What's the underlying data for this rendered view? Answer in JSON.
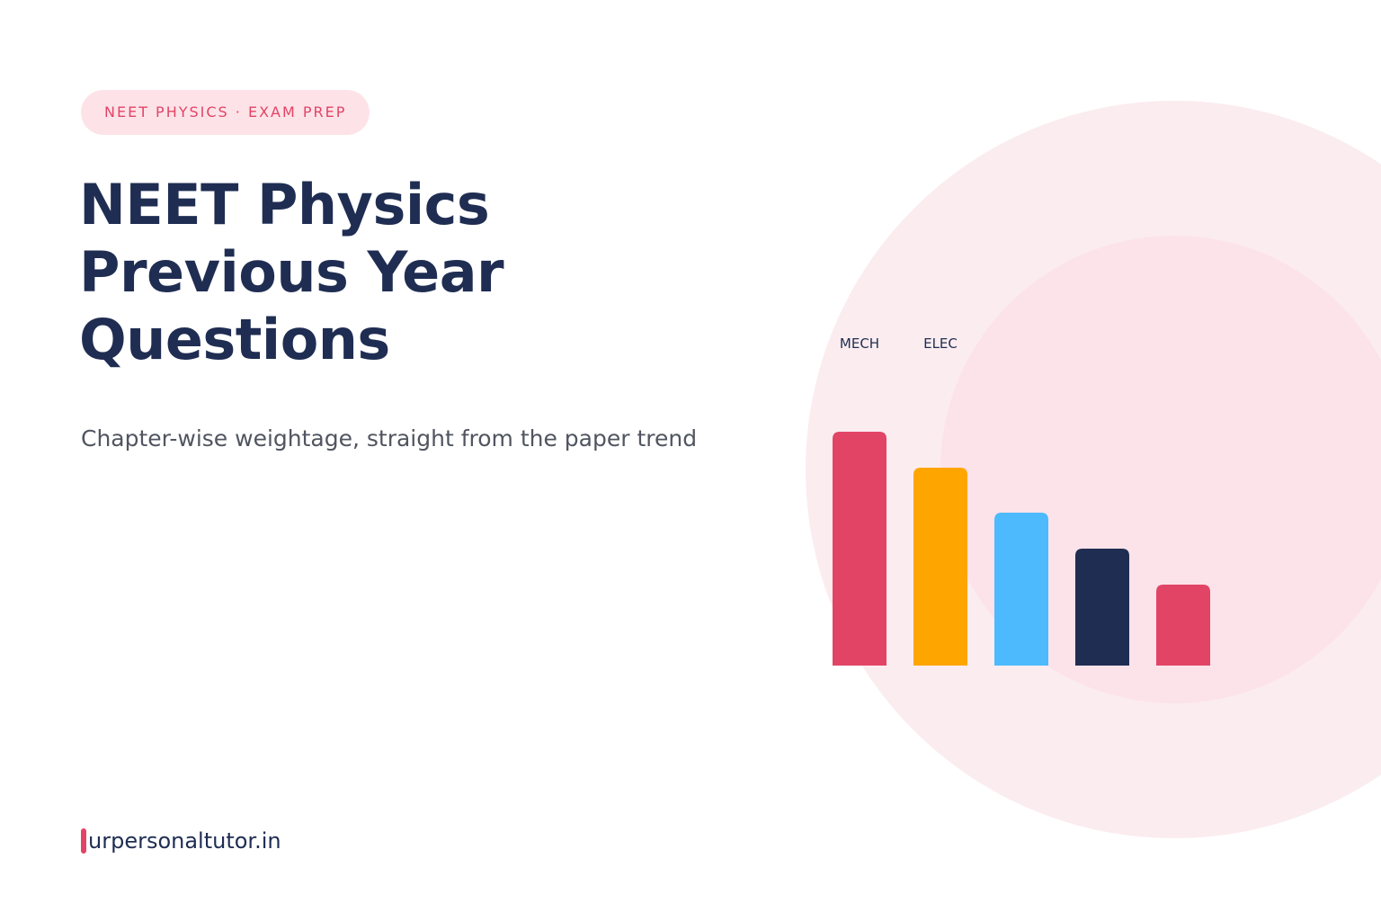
{
  "badge": "NEET PHYSICS · EXAM PREP",
  "title_lines": [
    "NEET Physics",
    "Previous Year",
    "Questions"
  ],
  "subtitle": "Chapter-wise weightage, straight from the paper trend",
  "brand": "urpersonaltutor.in",
  "colors": {
    "navy": "#1f2d52",
    "accent": "#e24466",
    "orange": "#ffa500",
    "sky": "#4cbafc"
  },
  "chart_data": {
    "type": "bar",
    "categories": [
      "MECH",
      "ELEC",
      "",
      "",
      ""
    ],
    "values": [
      26,
      22,
      17,
      13,
      9
    ],
    "colors": [
      "#e24466",
      "#ffa500",
      "#4cbafc",
      "#1f2d52",
      "#e24466"
    ],
    "title": "",
    "xlabel": "",
    "ylabel": "",
    "grid": false
  }
}
